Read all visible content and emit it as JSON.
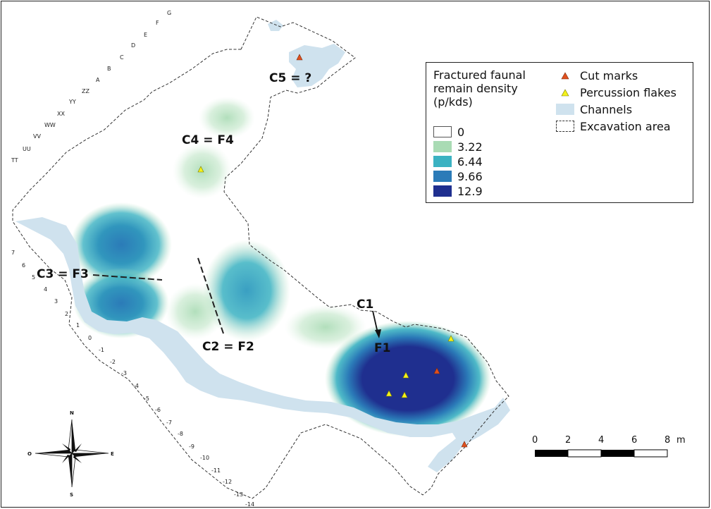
{
  "legend": {
    "title": "Fractured faunal remain density (p/kds)",
    "density_classes": [
      {
        "label": "0",
        "color": "#ffffff"
      },
      {
        "label": "3.22",
        "color": "#a9dbb4"
      },
      {
        "label": "6.44",
        "color": "#3bb2c2"
      },
      {
        "label": "9.66",
        "color": "#2b7bb8"
      },
      {
        "label": "12.9",
        "color": "#1f2f8f"
      }
    ],
    "symbols": [
      {
        "label": "Cut marks",
        "icon": "red-triangle-icon",
        "color": "#e0501e"
      },
      {
        "label": "Percussion flakes",
        "icon": "yellow-triangle-icon",
        "color": "#f4f21a"
      },
      {
        "label": "Channels",
        "icon": "channel-swatch",
        "color": "#cfe2ee"
      },
      {
        "label": "Excavation area",
        "icon": "dashed-outline-swatch",
        "color": "#333333"
      }
    ]
  },
  "clusters": [
    {
      "id": "c1",
      "label": "C1"
    },
    {
      "id": "f1",
      "label": "F1"
    },
    {
      "id": "c2",
      "label": "C2 = F2"
    },
    {
      "id": "c3",
      "label": "C3 = F3"
    },
    {
      "id": "c4",
      "label": "C4 = F4"
    },
    {
      "id": "c5",
      "label": "C5 = ?"
    }
  ],
  "grid_letters": [
    "TT",
    "UU",
    "VV",
    "WW",
    "XX",
    "YY",
    "ZZ",
    "A",
    "B",
    "C",
    "D",
    "E",
    "F",
    "G"
  ],
  "grid_numbers": [
    "7",
    "6",
    "5",
    "4",
    "3",
    "2",
    "1",
    "0",
    "-1",
    "-2",
    "-3",
    "-4",
    "-5",
    "-6",
    "-7",
    "-8",
    "-9",
    "-10",
    "-11",
    "-12",
    "-13",
    "-14"
  ],
  "scale_bar": {
    "ticks": [
      "0",
      "2",
      "4",
      "6",
      "8"
    ],
    "unit": "m"
  },
  "compass": {
    "north": "N",
    "south": "S",
    "east": "E",
    "west": "O"
  }
}
